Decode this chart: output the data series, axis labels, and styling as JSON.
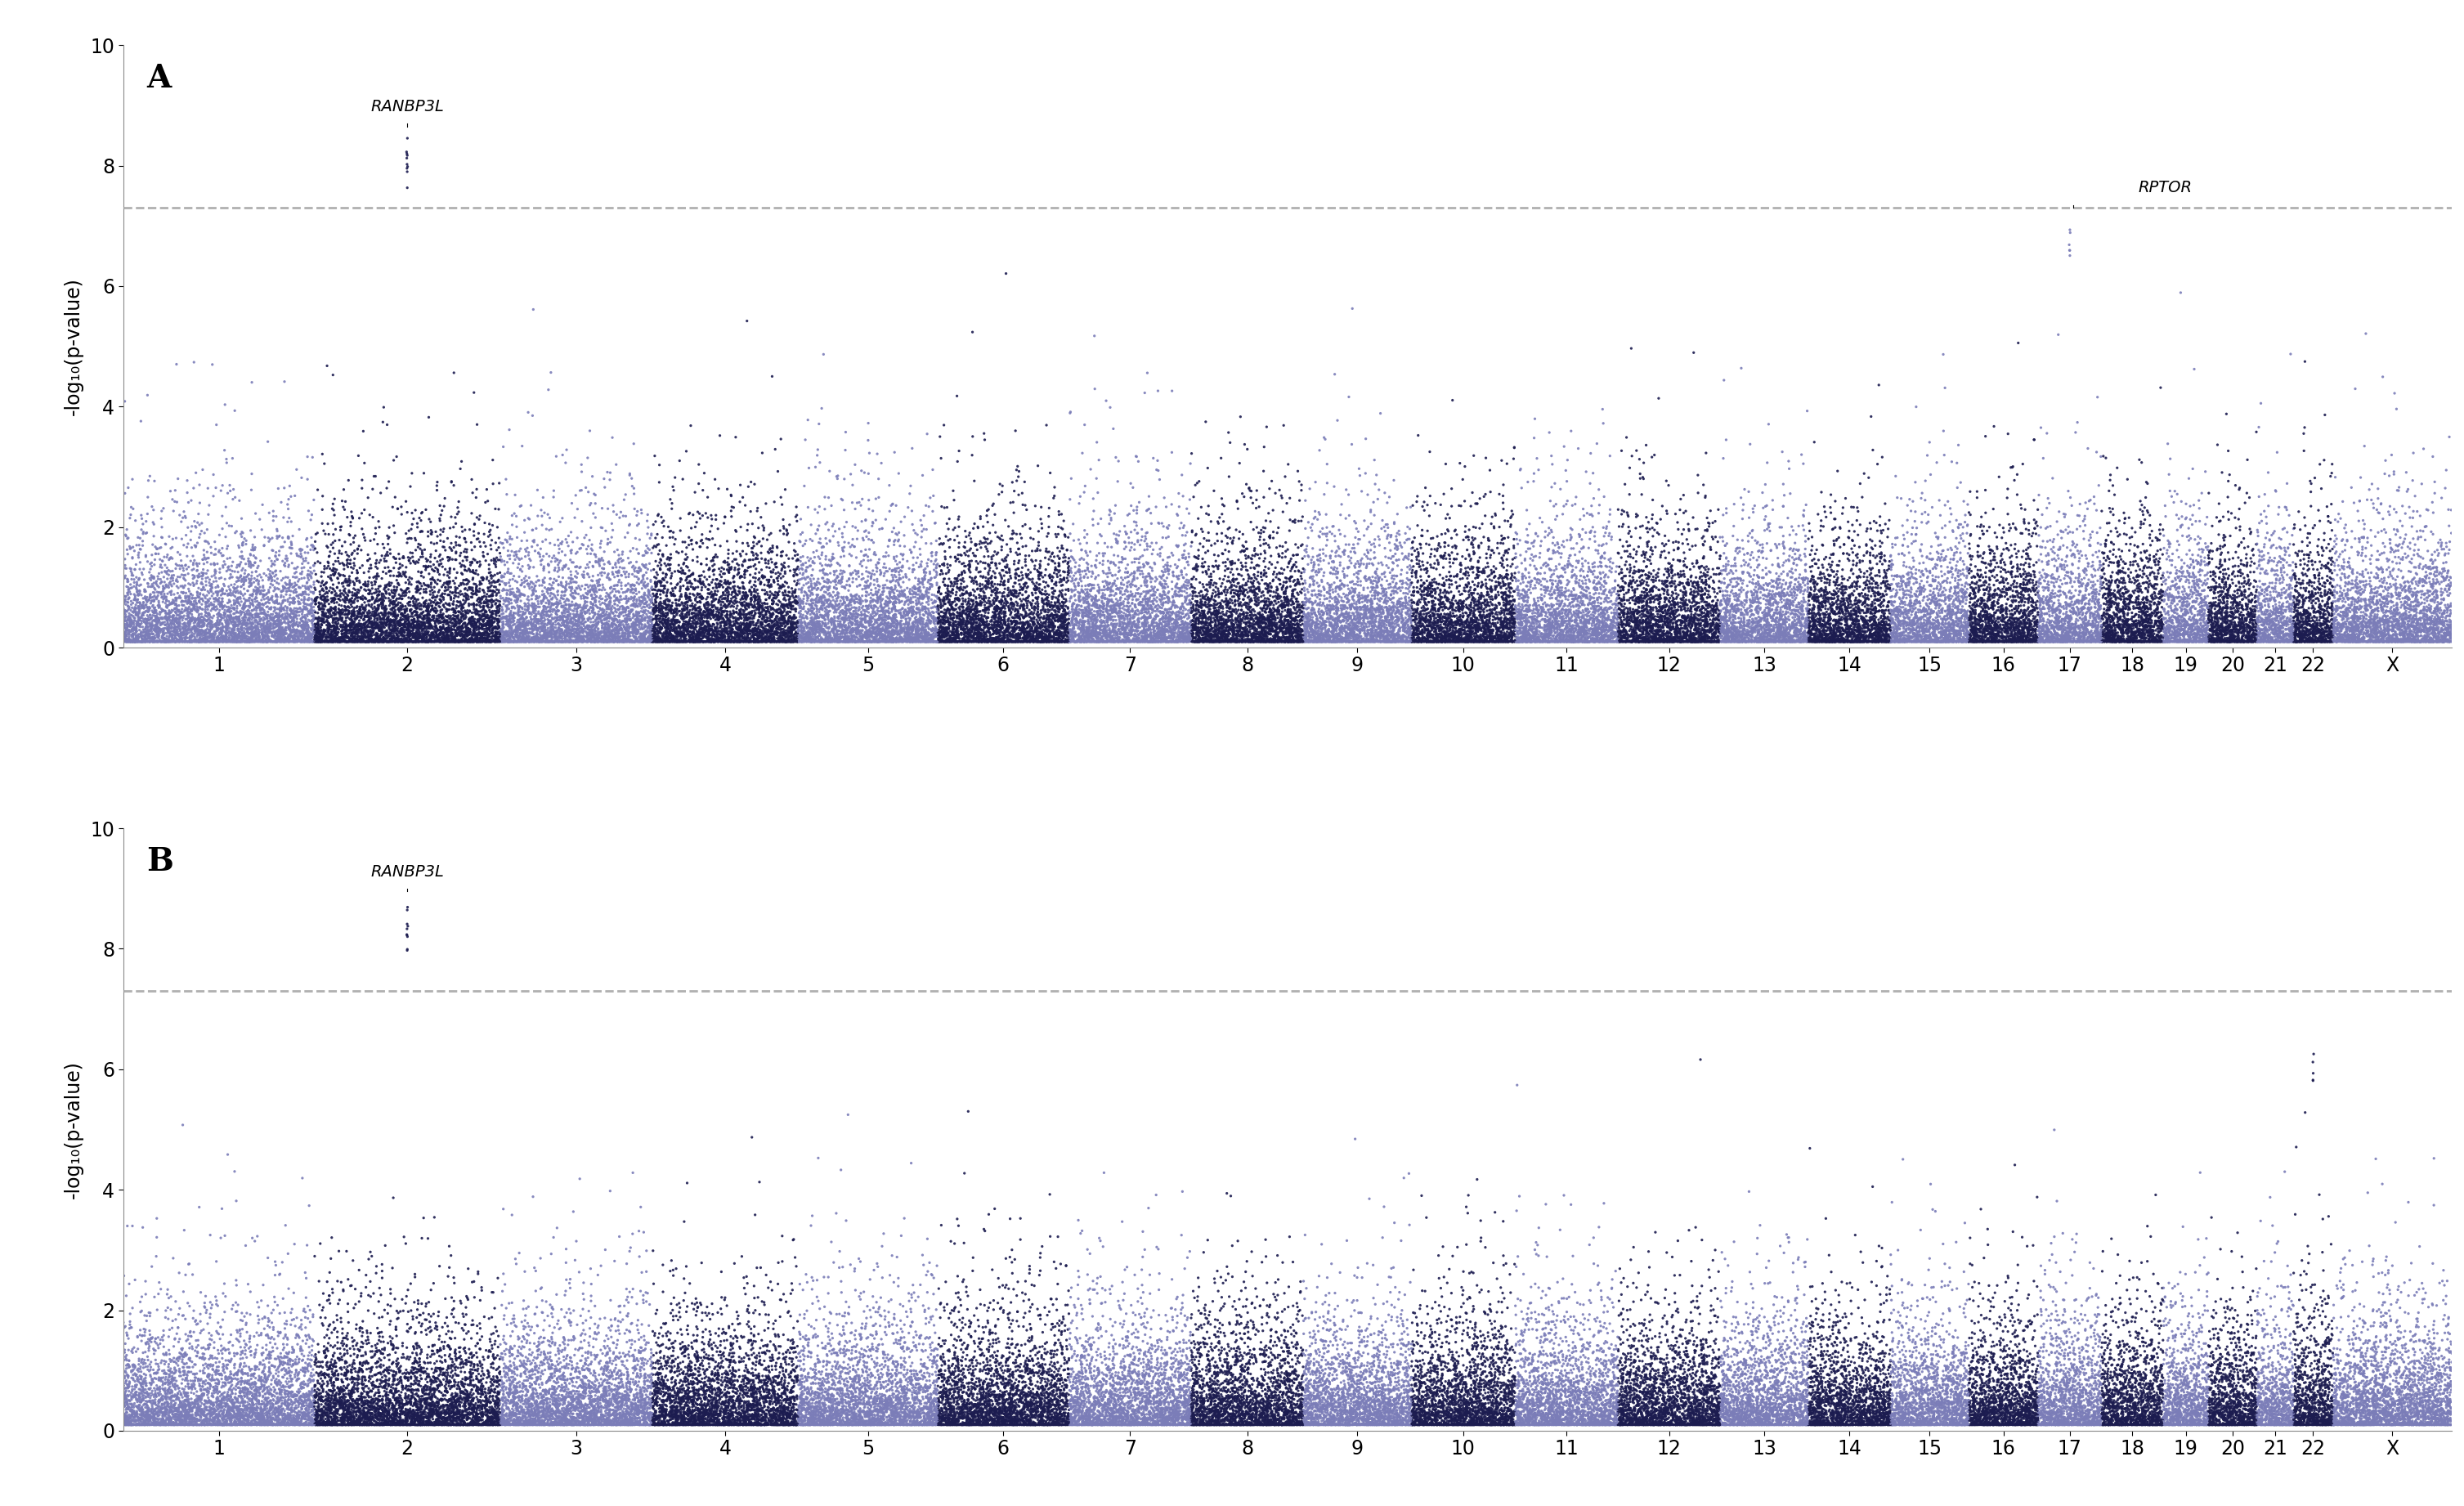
{
  "panel_A_label": "A",
  "panel_B_label": "B",
  "ylabel": "-log₁₀(p-value)",
  "ylim": [
    0,
    10
  ],
  "yticks": [
    0,
    2,
    4,
    6,
    8,
    10
  ],
  "significance_line": 7.3,
  "chromosomes": [
    1,
    2,
    3,
    4,
    5,
    6,
    7,
    8,
    9,
    10,
    11,
    12,
    13,
    14,
    15,
    16,
    17,
    18,
    19,
    20,
    21,
    22,
    23
  ],
  "chr_labels": [
    "1",
    "2",
    "3",
    "4",
    "5",
    "6",
    "7",
    "8",
    "9",
    "10",
    "11",
    "12",
    "13",
    "14",
    "15",
    "16",
    "17",
    "18",
    "19",
    "20",
    "21",
    "22",
    "X"
  ],
  "color_odd": "#7b7db8",
  "color_even": "#1c1c50",
  "background_color": "#ffffff",
  "sig_line_color": "#b0b0b0",
  "random_seed_A": 42,
  "random_seed_B": 123,
  "font_size_label": 28,
  "font_size_annotation": 14,
  "font_size_tick": 17,
  "font_size_ylabel": 17,
  "dot_size": 5.5,
  "dot_alpha": 0.9,
  "n_scale": 18
}
